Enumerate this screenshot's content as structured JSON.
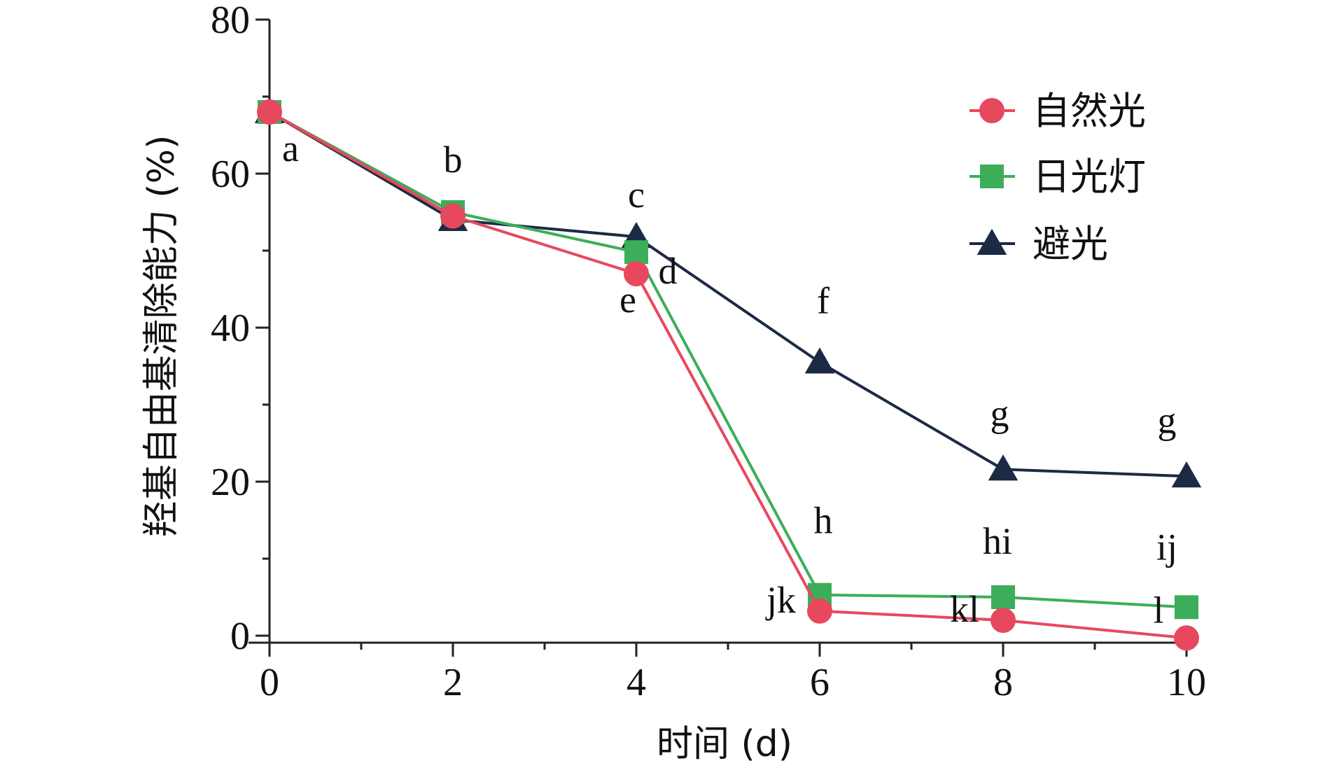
{
  "chart_data": {
    "type": "line",
    "title": "",
    "xlabel": "时间 (d)",
    "ylabel": "羟基自由基清除能力 (%)",
    "x": [
      0,
      2,
      4,
      6,
      8,
      10
    ],
    "xlim": [
      0,
      10
    ],
    "ylim": [
      0,
      80
    ],
    "xticks": [
      "0",
      "2",
      "4",
      "6",
      "8",
      "10"
    ],
    "yticks": [
      "0",
      "20",
      "40",
      "60",
      "80"
    ],
    "grid": false,
    "legend_position": "top-right",
    "series": [
      {
        "name": "自然光",
        "marker": "circle",
        "color": "#e8485e",
        "values": [
          68,
          54.5,
          47,
          3.2,
          2.0,
          -0.3
        ],
        "labels": [
          "a",
          "",
          "e",
          "jk",
          "kl",
          "l"
        ]
      },
      {
        "name": "日光灯",
        "marker": "square",
        "color": "#3cae5a",
        "values": [
          68,
          55,
          49.8,
          5.3,
          5.0,
          3.7
        ],
        "labels": [
          "",
          "",
          "d",
          "h",
          "hi",
          "ij"
        ]
      },
      {
        "name": "避光",
        "marker": "triangle",
        "color": "#1c2a44",
        "values": [
          68,
          54,
          51.8,
          35.5,
          21.6,
          20.7
        ],
        "labels": [
          "",
          "b",
          "c",
          "f",
          "g",
          "g"
        ]
      }
    ]
  }
}
